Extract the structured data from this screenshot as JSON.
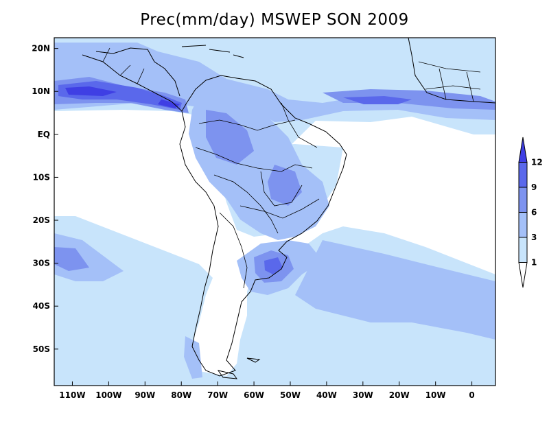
{
  "title": "Prec(mm/day) MSWEP SON 2009",
  "map": {
    "lon_range": [
      -115,
      6.5
    ],
    "lat_range": [
      -58.5,
      22.5
    ],
    "lat_ticks": [
      {
        "label": "20N",
        "value": 20
      },
      {
        "label": "10N",
        "value": 10
      },
      {
        "label": "EQ",
        "value": 0
      },
      {
        "label": "10S",
        "value": -10
      },
      {
        "label": "20S",
        "value": -20
      },
      {
        "label": "30S",
        "value": -30
      },
      {
        "label": "40S",
        "value": -40
      },
      {
        "label": "50S",
        "value": -50
      }
    ],
    "lon_ticks": [
      {
        "label": "110W",
        "value": -110
      },
      {
        "label": "100W",
        "value": -100
      },
      {
        "label": "90W",
        "value": -90
      },
      {
        "label": "80W",
        "value": -80
      },
      {
        "label": "70W",
        "value": -70
      },
      {
        "label": "60W",
        "value": -60
      },
      {
        "label": "50W",
        "value": -50
      },
      {
        "label": "40W",
        "value": -40
      },
      {
        "label": "30W",
        "value": -30
      },
      {
        "label": "20W",
        "value": -20
      },
      {
        "label": "10W",
        "value": -10
      },
      {
        "label": "0",
        "value": 0
      }
    ]
  },
  "colorbar": {
    "labels": [
      "1",
      "3",
      "6",
      "9",
      "12"
    ],
    "levels": [
      1,
      3,
      6,
      9,
      12
    ],
    "colors": [
      "#ffffff",
      "#c8e4fb",
      "#a4c0f8",
      "#7d93ef",
      "#5a68eb",
      "#3f3fe4"
    ]
  }
}
